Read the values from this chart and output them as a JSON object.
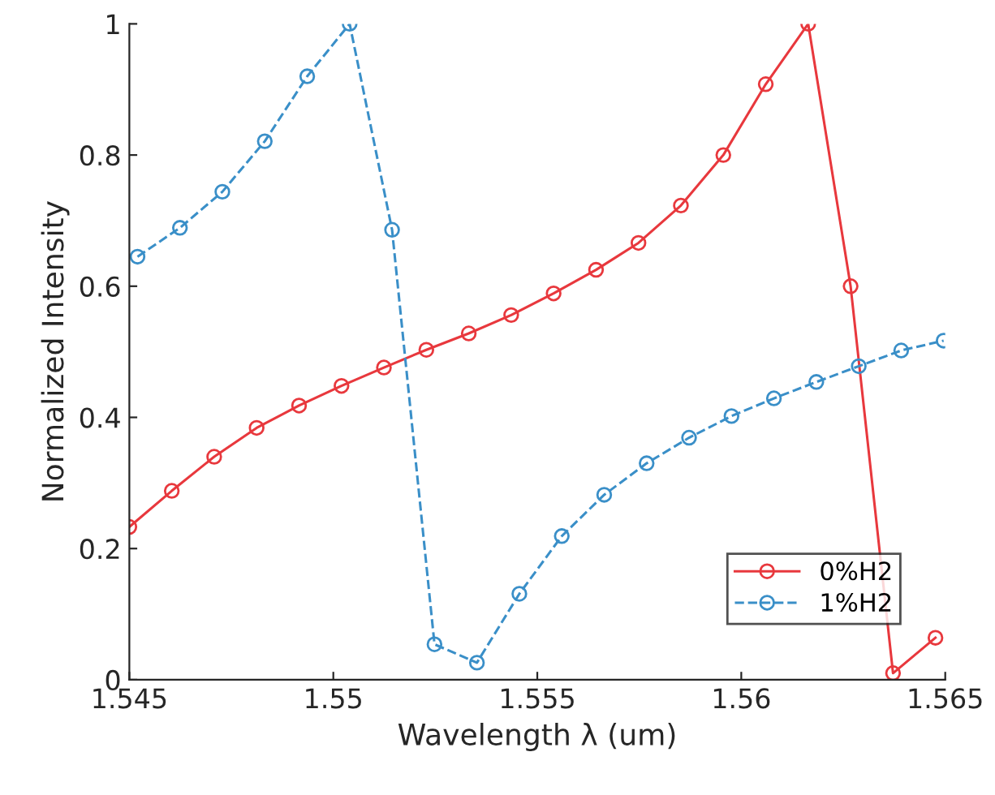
{
  "chart_data": {
    "type": "line",
    "xlabel": "Wavelength λ (um)",
    "ylabel": "Normalized Intensity",
    "xlim": [
      1.545,
      1.565
    ],
    "xticks": [
      1.545,
      1.55,
      1.555,
      1.56,
      1.565
    ],
    "ylim": [
      0,
      1
    ],
    "yticks": [
      0,
      0.2,
      0.4,
      0.6,
      0.8,
      1
    ],
    "grid": false,
    "legend": "bottom right",
    "marker": "circle",
    "series": [
      {
        "name": "0%H2",
        "color": "#e8383d",
        "line_style": "solid",
        "x": [
          1.545,
          1.54604,
          1.54708,
          1.54812,
          1.54916,
          1.5502,
          1.55124,
          1.55228,
          1.55332,
          1.55436,
          1.5554,
          1.55644,
          1.55748,
          1.55852,
          1.55956,
          1.5606,
          1.56164,
          1.56268,
          1.56372,
          1.56476
        ],
        "values": [
          0.233,
          0.288,
          0.34,
          0.384,
          0.418,
          0.448,
          0.476,
          0.503,
          0.528,
          0.556,
          0.589,
          0.625,
          0.666,
          0.723,
          0.8,
          0.908,
          1.0,
          0.6,
          0.01,
          0.064
        ]
      },
      {
        "name": "1%H2",
        "color": "#3a8fc8",
        "line_style": "dashed",
        "x": [
          1.5452,
          1.54624,
          1.54728,
          1.54832,
          1.54936,
          1.5504,
          1.55144,
          1.55248,
          1.55352,
          1.55456,
          1.5556,
          1.55664,
          1.55768,
          1.55872,
          1.55976,
          1.5608,
          1.56184,
          1.56288,
          1.56392,
          1.56496
        ],
        "values": [
          0.645,
          0.689,
          0.744,
          0.821,
          0.92,
          1.0,
          0.686,
          0.054,
          0.026,
          0.131,
          0.219,
          0.282,
          0.33,
          0.369,
          0.402,
          0.429,
          0.454,
          0.478,
          0.502,
          0.517
        ]
      }
    ]
  }
}
